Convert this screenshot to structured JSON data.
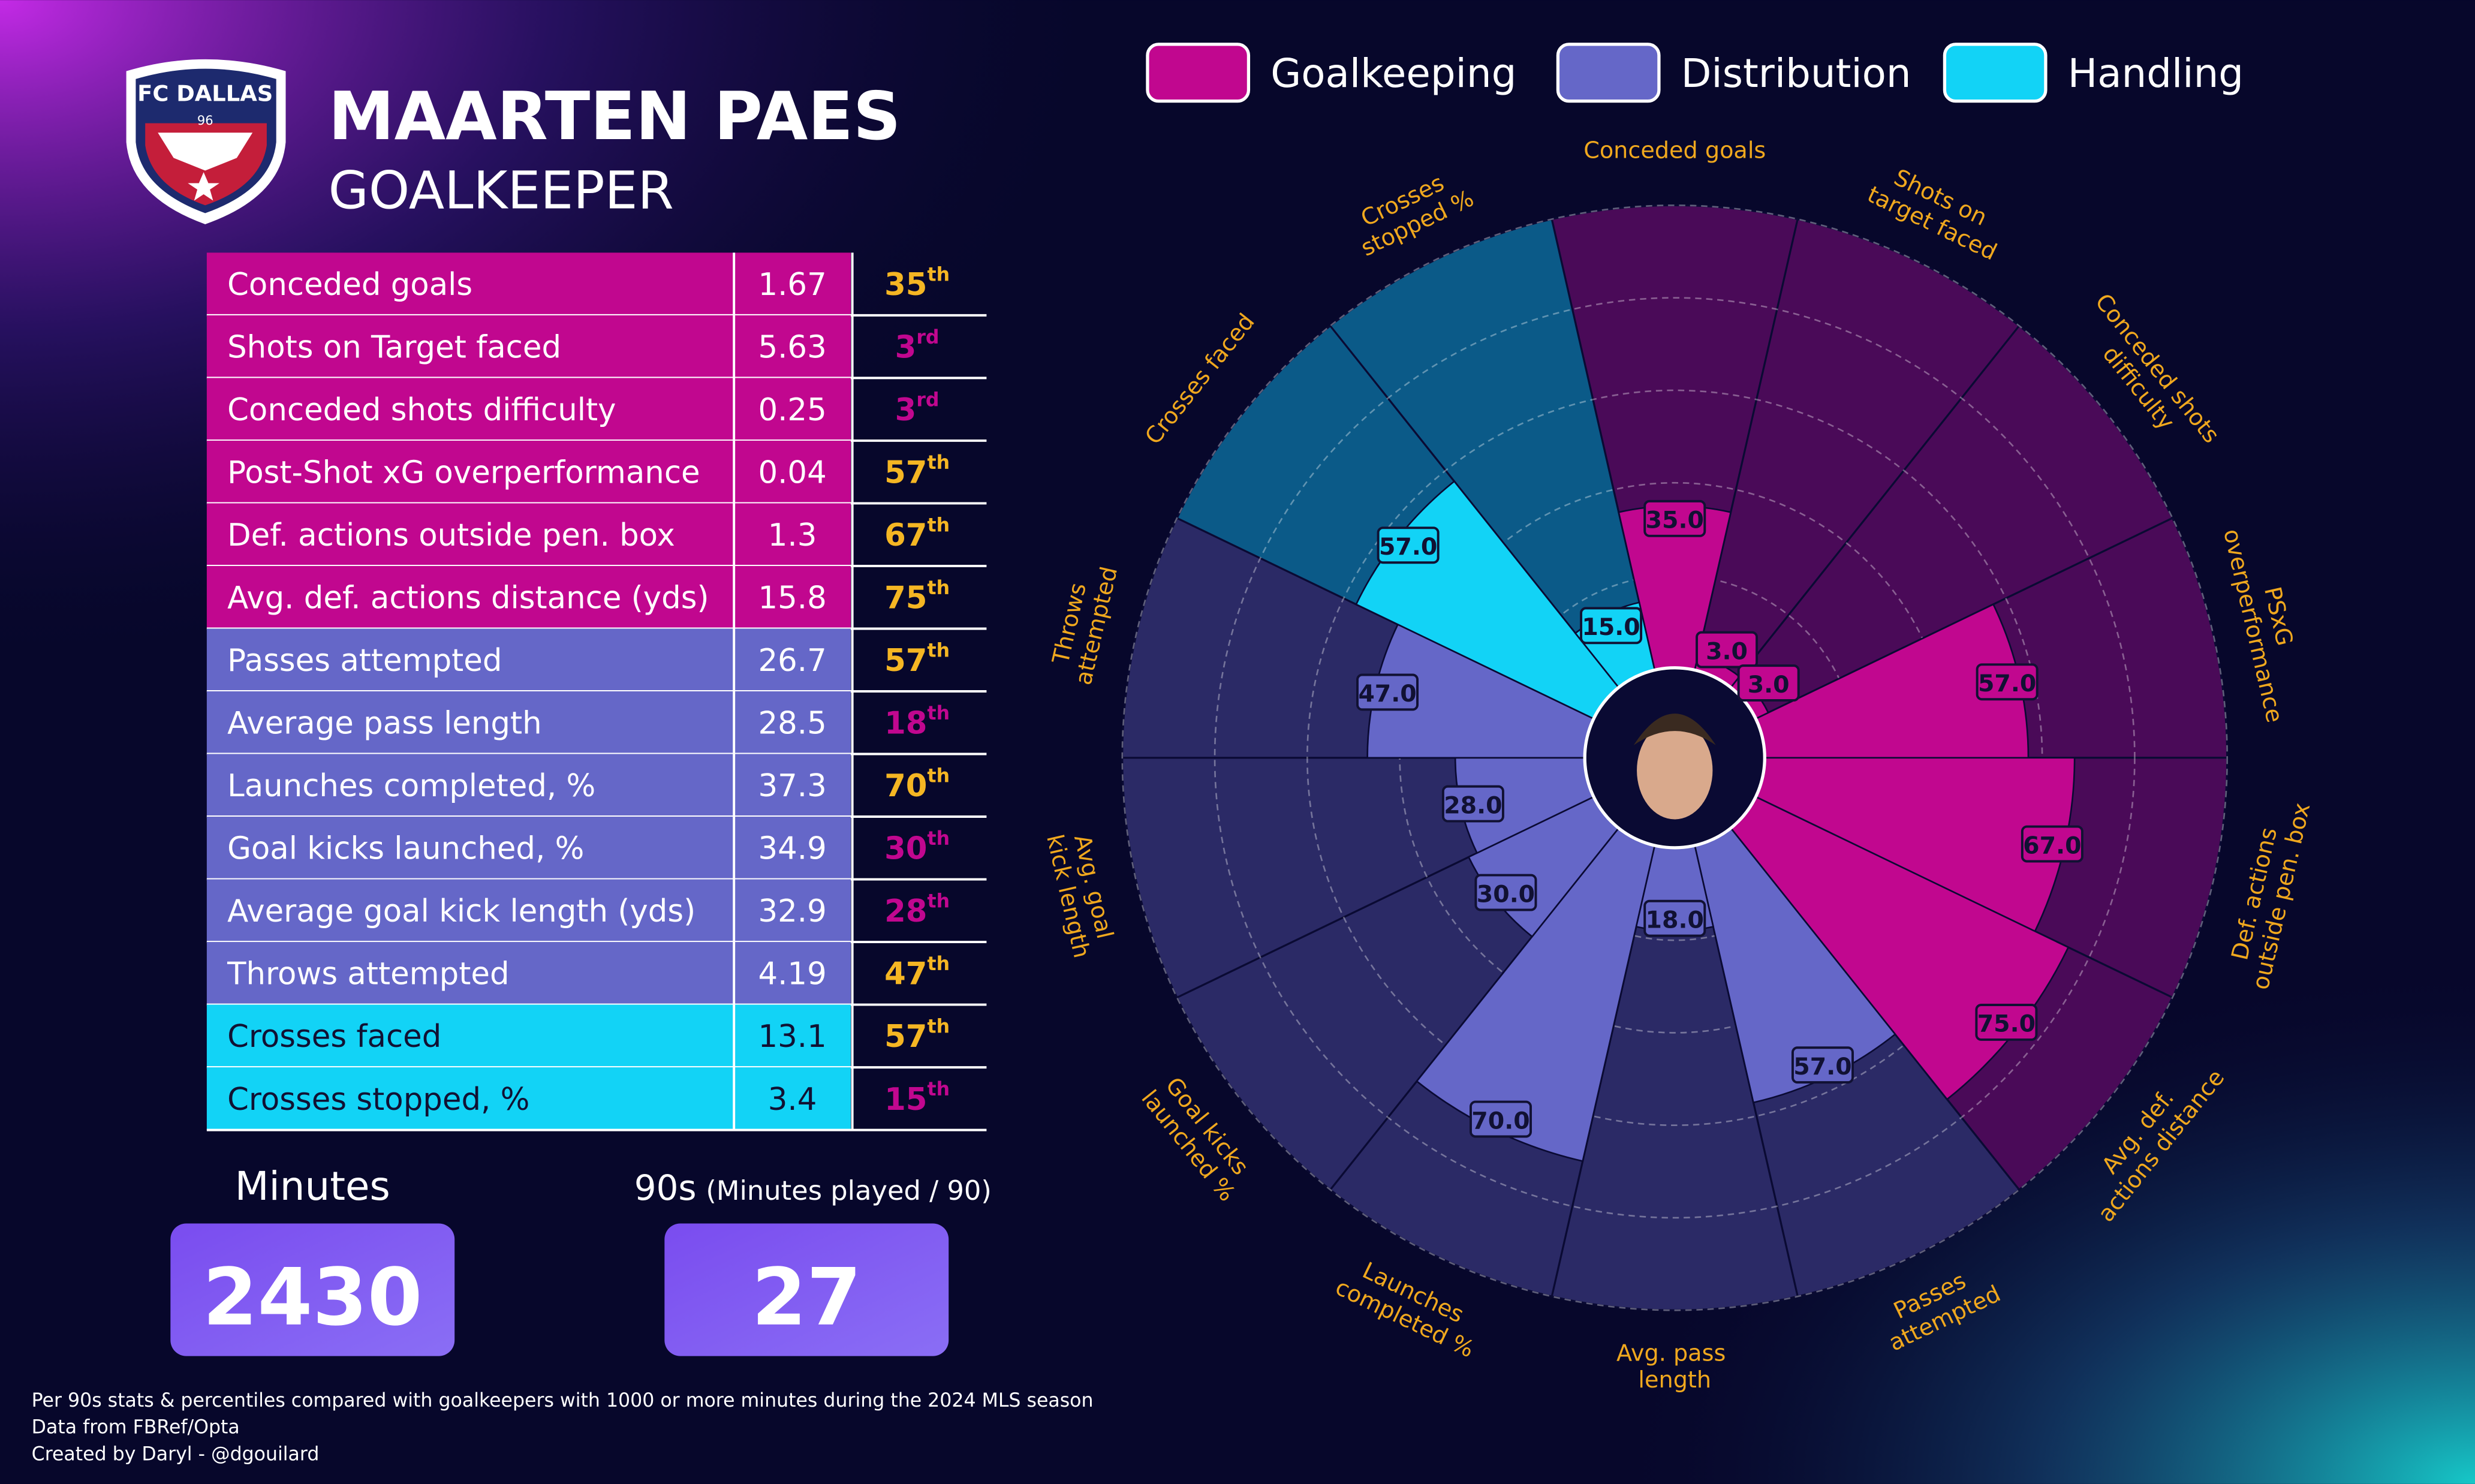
{
  "header": {
    "name": "MAARTEN PAES",
    "position": "GOALKEEPER",
    "logo_text": "FC DALLAS",
    "logo_year": "96"
  },
  "table": {
    "rows": [
      {
        "metric": "Conceded goals",
        "value": "1.67",
        "percentile": "35",
        "suffix": "th",
        "color": "#c1078f",
        "text_color": "#ffffff",
        "rank_color": "#f5b623"
      },
      {
        "metric": "Shots on Target faced",
        "value": "5.63",
        "percentile": "3",
        "suffix": "rd",
        "color": "#c1078f",
        "text_color": "#ffffff",
        "rank_color": "#c1078f"
      },
      {
        "metric": "Conceded shots difficulty",
        "value": "0.25",
        "percentile": "3",
        "suffix": "rd",
        "color": "#c1078f",
        "text_color": "#ffffff",
        "rank_color": "#c1078f"
      },
      {
        "metric": "Post-Shot xG overperformance",
        "value": "0.04",
        "percentile": "57",
        "suffix": "th",
        "color": "#c1078f",
        "text_color": "#ffffff",
        "rank_color": "#f5b623"
      },
      {
        "metric": "Def. actions outside pen. box",
        "value": "1.3",
        "percentile": "67",
        "suffix": "th",
        "color": "#c1078f",
        "text_color": "#ffffff",
        "rank_color": "#f5b623"
      },
      {
        "metric": "Avg. def. actions distance (yds)",
        "value": "15.8",
        "percentile": "75",
        "suffix": "th",
        "color": "#c1078f",
        "text_color": "#ffffff",
        "rank_color": "#f5b623"
      },
      {
        "metric": "Passes attempted",
        "value": "26.7",
        "percentile": "57",
        "suffix": "th",
        "color": "#6567c8",
        "text_color": "#ffffff",
        "rank_color": "#f5b623"
      },
      {
        "metric": "Average pass length",
        "value": "28.5",
        "percentile": "18",
        "suffix": "th",
        "color": "#6567c8",
        "text_color": "#ffffff",
        "rank_color": "#c1078f"
      },
      {
        "metric": "Launches completed, %",
        "value": "37.3",
        "percentile": "70",
        "suffix": "th",
        "color": "#6567c8",
        "text_color": "#ffffff",
        "rank_color": "#f5b623"
      },
      {
        "metric": "Goal kicks launched, %",
        "value": "34.9",
        "percentile": "30",
        "suffix": "th",
        "color": "#6567c8",
        "text_color": "#ffffff",
        "rank_color": "#c1078f"
      },
      {
        "metric": "Average goal kick length (yds)",
        "value": "32.9",
        "percentile": "28",
        "suffix": "th",
        "color": "#6567c8",
        "text_color": "#ffffff",
        "rank_color": "#c1078f"
      },
      {
        "metric": "Throws attempted",
        "value": "4.19",
        "percentile": "47",
        "suffix": "th",
        "color": "#6567c8",
        "text_color": "#ffffff",
        "rank_color": "#f5b623"
      },
      {
        "metric": "Crosses faced",
        "value": "13.1",
        "percentile": "57",
        "suffix": "th",
        "color": "#12d3f6",
        "text_color": "#111133",
        "rank_color": "#f5b623"
      },
      {
        "metric": "Crosses stopped, %",
        "value": "3.4",
        "percentile": "15",
        "suffix": "th",
        "color": "#12d3f6",
        "text_color": "#111133",
        "rank_color": "#c1078f"
      }
    ]
  },
  "stats": [
    {
      "label": "Minutes",
      "value": "2430"
    },
    {
      "label": "90s",
      "note": "(Minutes played / 90)",
      "value": "27"
    }
  ],
  "footer": [
    "Per 90s stats & percentiles compared with goalkeepers with 1000 or more minutes during the 2024 MLS season",
    "Data from FBRef/Opta",
    "Created by Daryl - @dgouilard"
  ],
  "chart_data": {
    "type": "pizza",
    "categories": [
      "Conceded goals",
      "Shots on target faced",
      "Conceded shots difficulty",
      "PSxG overperformance",
      "Def. actions outside pen. box",
      "Avg. def. actions distance",
      "Passes attempted",
      "Avg. pass length",
      "Launches completed %",
      "Goal kicks launched %",
      "Avg. goal kick length",
      "Throws attempted",
      "Crosses faced",
      "Crosses stopped %"
    ],
    "series": [
      {
        "name": "Goalkeeping",
        "color": "#c1078f",
        "background": "#4a0a58",
        "values": [
          35,
          3,
          3,
          57,
          67,
          75,
          null,
          null,
          null,
          null,
          null,
          null,
          null,
          null
        ],
        "value_labels": [
          "35.0",
          "3.0",
          "3.0",
          "57.0",
          "67.0",
          "75.0",
          null,
          null,
          null,
          null,
          null,
          null,
          null,
          null
        ]
      },
      {
        "name": "Distribution",
        "color": "#6567c8",
        "background": "#2b2a66",
        "values": [
          null,
          null,
          null,
          null,
          null,
          null,
          57,
          18,
          70,
          30,
          28,
          47,
          null,
          null
        ],
        "value_labels": [
          null,
          null,
          null,
          null,
          null,
          null,
          "57.0",
          "18.0",
          "70.0",
          "30.0",
          "28.0",
          "47.0",
          null,
          null
        ]
      },
      {
        "name": "Handling",
        "color": "#12d3f6",
        "background": "#0b5a88",
        "values": [
          null,
          null,
          null,
          null,
          null,
          null,
          null,
          null,
          null,
          null,
          null,
          null,
          57,
          15
        ],
        "value_labels": [
          null,
          null,
          null,
          null,
          null,
          null,
          null,
          null,
          null,
          null,
          null,
          null,
          "57.0",
          "15.0"
        ]
      }
    ],
    "ylim": [
      0,
      100
    ],
    "yticks": [
      20,
      40,
      60,
      80,
      100
    ],
    "grid": true,
    "label_color": "#f0a81e"
  }
}
